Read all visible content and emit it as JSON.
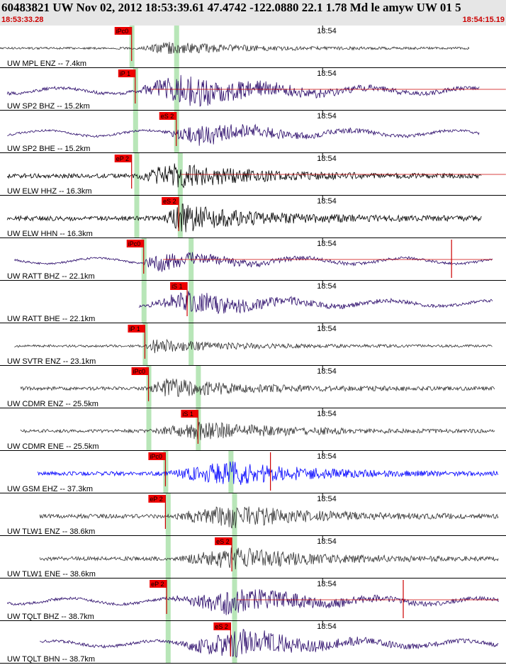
{
  "header": {
    "title": "60483821 UW Nov 02, 2012 18:53:39.61    47.4742 -122.0880 22.1 1.78 Md le amyw UW 01   5",
    "time_start": "18:53:33.28",
    "time_end": "18:54:15.19"
  },
  "colors": {
    "header_bg": "#e6e6e6",
    "header_time": "#cc0000",
    "pick_box": "#ee0000",
    "pick_band": "#b8e6b8",
    "trace_dark": "#333333",
    "trace_purple": "#2a0a6a",
    "trace_blue": "#0000ff"
  },
  "chart_data": {
    "type": "line",
    "title": "60483821 UW Nov 02, 2012 18:53:39.61 47.4742 -122.0880 22.1 1.78 Md le amyw UW 01 5",
    "x_range": [
      "18:53:33.28",
      "18:54:15.19"
    ],
    "x_unit": "seconds from 18:53:33.28",
    "x_duration_s": 41.91,
    "minute_tick": {
      "label": "18:54",
      "t": 26.72
    },
    "grid": false,
    "traces": [
      {
        "label": "UW MPL ENZ -- 7.4km",
        "distance_km": 7.4,
        "color": "dark",
        "pick": {
          "label": "iPc0",
          "t": 10.9
        },
        "band": [
          10.9,
          14.6
        ],
        "start_t": 0.0,
        "end_t": 38.9,
        "amp": 0.35,
        "onset_t": 10.9,
        "peak_t": 14.0
      },
      {
        "label": "UW SP2 BHZ -- 15.2km",
        "distance_km": 15.2,
        "color": "purple",
        "pick": {
          "label": "iP 1",
          "t": 11.2
        },
        "band": [
          11.2,
          14.6
        ],
        "start_t": 0.6,
        "end_t": 39.7,
        "amp": 0.9,
        "onset_t": 11.2,
        "peak_t": 15.5,
        "red_line": [
          12.5,
          41.9
        ]
      },
      {
        "label": "UW SP2 BHE -- 15.2km",
        "distance_km": 15.2,
        "color": "purple",
        "pick": {
          "label": "eS 2",
          "t": 14.6
        },
        "band": [
          11.2,
          14.6
        ],
        "start_t": 0.6,
        "end_t": 39.7,
        "amp": 0.6,
        "onset_t": 13.5,
        "peak_t": 16.5
      },
      {
        "label": "UW ELW HHZ -- 16.3km",
        "distance_km": 16.3,
        "color": "black",
        "pick": {
          "label": "eP 2",
          "t": 10.9
        },
        "band": [
          11.3,
          14.9
        ],
        "start_t": 0.6,
        "end_t": 39.9,
        "amp": 0.75,
        "onset_t": 11.3,
        "peak_t": 14.4,
        "red_line": [
          15.0,
          41.9
        ]
      },
      {
        "label": "UW ELW HHN -- 16.3km",
        "distance_km": 16.3,
        "color": "black",
        "pick": {
          "label": "eS 2",
          "t": 14.8
        },
        "band": [
          11.3,
          14.9
        ],
        "start_t": 0.6,
        "end_t": 39.9,
        "amp": 0.8,
        "onset_t": 13.5,
        "peak_t": 15.0
      },
      {
        "label": "UW RATT BHZ -- 22.1km",
        "distance_km": 22.1,
        "color": "purple",
        "pick": {
          "label": "iPc0",
          "t": 11.9
        },
        "band": [
          11.9,
          15.8
        ],
        "start_t": 1.2,
        "end_t": 40.8,
        "amp": 0.55,
        "onset_t": 11.9,
        "peak_t": 12.5,
        "red_line": [
          13.5,
          40.8
        ],
        "spike_t": 37.4
      },
      {
        "label": "UW RATT BHE -- 22.1km",
        "distance_km": 22.1,
        "color": "purple",
        "pick": {
          "label": "iS 1",
          "t": 15.5
        },
        "band": [
          11.9,
          15.8
        ],
        "start_t": 11.5,
        "end_t": 40.8,
        "amp": 0.65,
        "onset_t": 11.9,
        "peak_t": 16.0
      },
      {
        "label": "UW SVTR ENZ -- 23.1km",
        "distance_km": 23.1,
        "color": "dark",
        "pick": {
          "label": "iP 1",
          "t": 12.0
        },
        "band": [
          12.0,
          15.8
        ],
        "start_t": 1.2,
        "end_t": 40.8,
        "amp": 0.4,
        "onset_t": 12.0,
        "peak_t": 12.8
      },
      {
        "label": "UW CDMR ENZ -- 25.5km",
        "distance_km": 25.5,
        "color": "dark",
        "pick": {
          "label": "iPc0",
          "t": 12.3
        },
        "band": [
          12.3,
          16.4
        ],
        "start_t": 1.7,
        "end_t": 41.0,
        "amp": 0.6,
        "onset_t": 12.3,
        "peak_t": 13.5
      },
      {
        "label": "UW CDMR ENE -- 25.5km",
        "distance_km": 25.5,
        "color": "dark",
        "pick": {
          "label": "iS 1",
          "t": 16.4
        },
        "band": [
          12.3,
          16.4
        ],
        "start_t": 1.7,
        "end_t": 41.0,
        "amp": 0.55,
        "onset_t": 12.3,
        "peak_t": 17.0
      },
      {
        "label": "UW GSM EHZ -- 37.3km",
        "distance_km": 37.3,
        "color": "blue",
        "pick": {
          "label": "iPc0",
          "t": 13.7
        },
        "band": [
          13.7,
          19.1
        ],
        "start_t": 3.1,
        "end_t": 41.3,
        "amp": 0.7,
        "onset_t": 13.7,
        "peak_t": 19.0,
        "spike_t": 22.4
      },
      {
        "label": "UW TLW1 ENZ -- 38.6km",
        "distance_km": 38.6,
        "color": "dark",
        "pick": {
          "label": "eP 2",
          "t": 13.7
        },
        "band": [
          13.9,
          19.4
        ],
        "start_t": 3.3,
        "end_t": 41.3,
        "amp": 0.7,
        "onset_t": 13.9,
        "peak_t": 19.2
      },
      {
        "label": "UW TLW1 ENE -- 38.6km",
        "distance_km": 38.6,
        "color": "dark",
        "pick": {
          "label": "eS 2",
          "t": 19.2
        },
        "band": [
          13.9,
          19.4
        ],
        "start_t": 3.3,
        "end_t": 41.3,
        "amp": 0.65,
        "onset_t": 14.5,
        "peak_t": 19.6
      },
      {
        "label": "UW TQLT BHZ -- 38.7km",
        "distance_km": 38.7,
        "color": "purple",
        "pick": {
          "label": "eP 2",
          "t": 13.8
        },
        "band": [
          13.9,
          19.4
        ],
        "start_t": 0.6,
        "end_t": 41.3,
        "amp": 0.75,
        "onset_t": 13.9,
        "peak_t": 19.6,
        "red_line": [
          19.6,
          41.3
        ],
        "spike_t": 33.4
      },
      {
        "label": "UW TQLT BHN -- 38.7km",
        "distance_km": 38.7,
        "color": "purple",
        "pick": {
          "label": "eS 2",
          "t": 19.1
        },
        "band": [
          13.9,
          19.4
        ],
        "start_t": 3.3,
        "end_t": 41.3,
        "amp": 0.8,
        "onset_t": 14.5,
        "peak_t": 19.5
      }
    ]
  }
}
